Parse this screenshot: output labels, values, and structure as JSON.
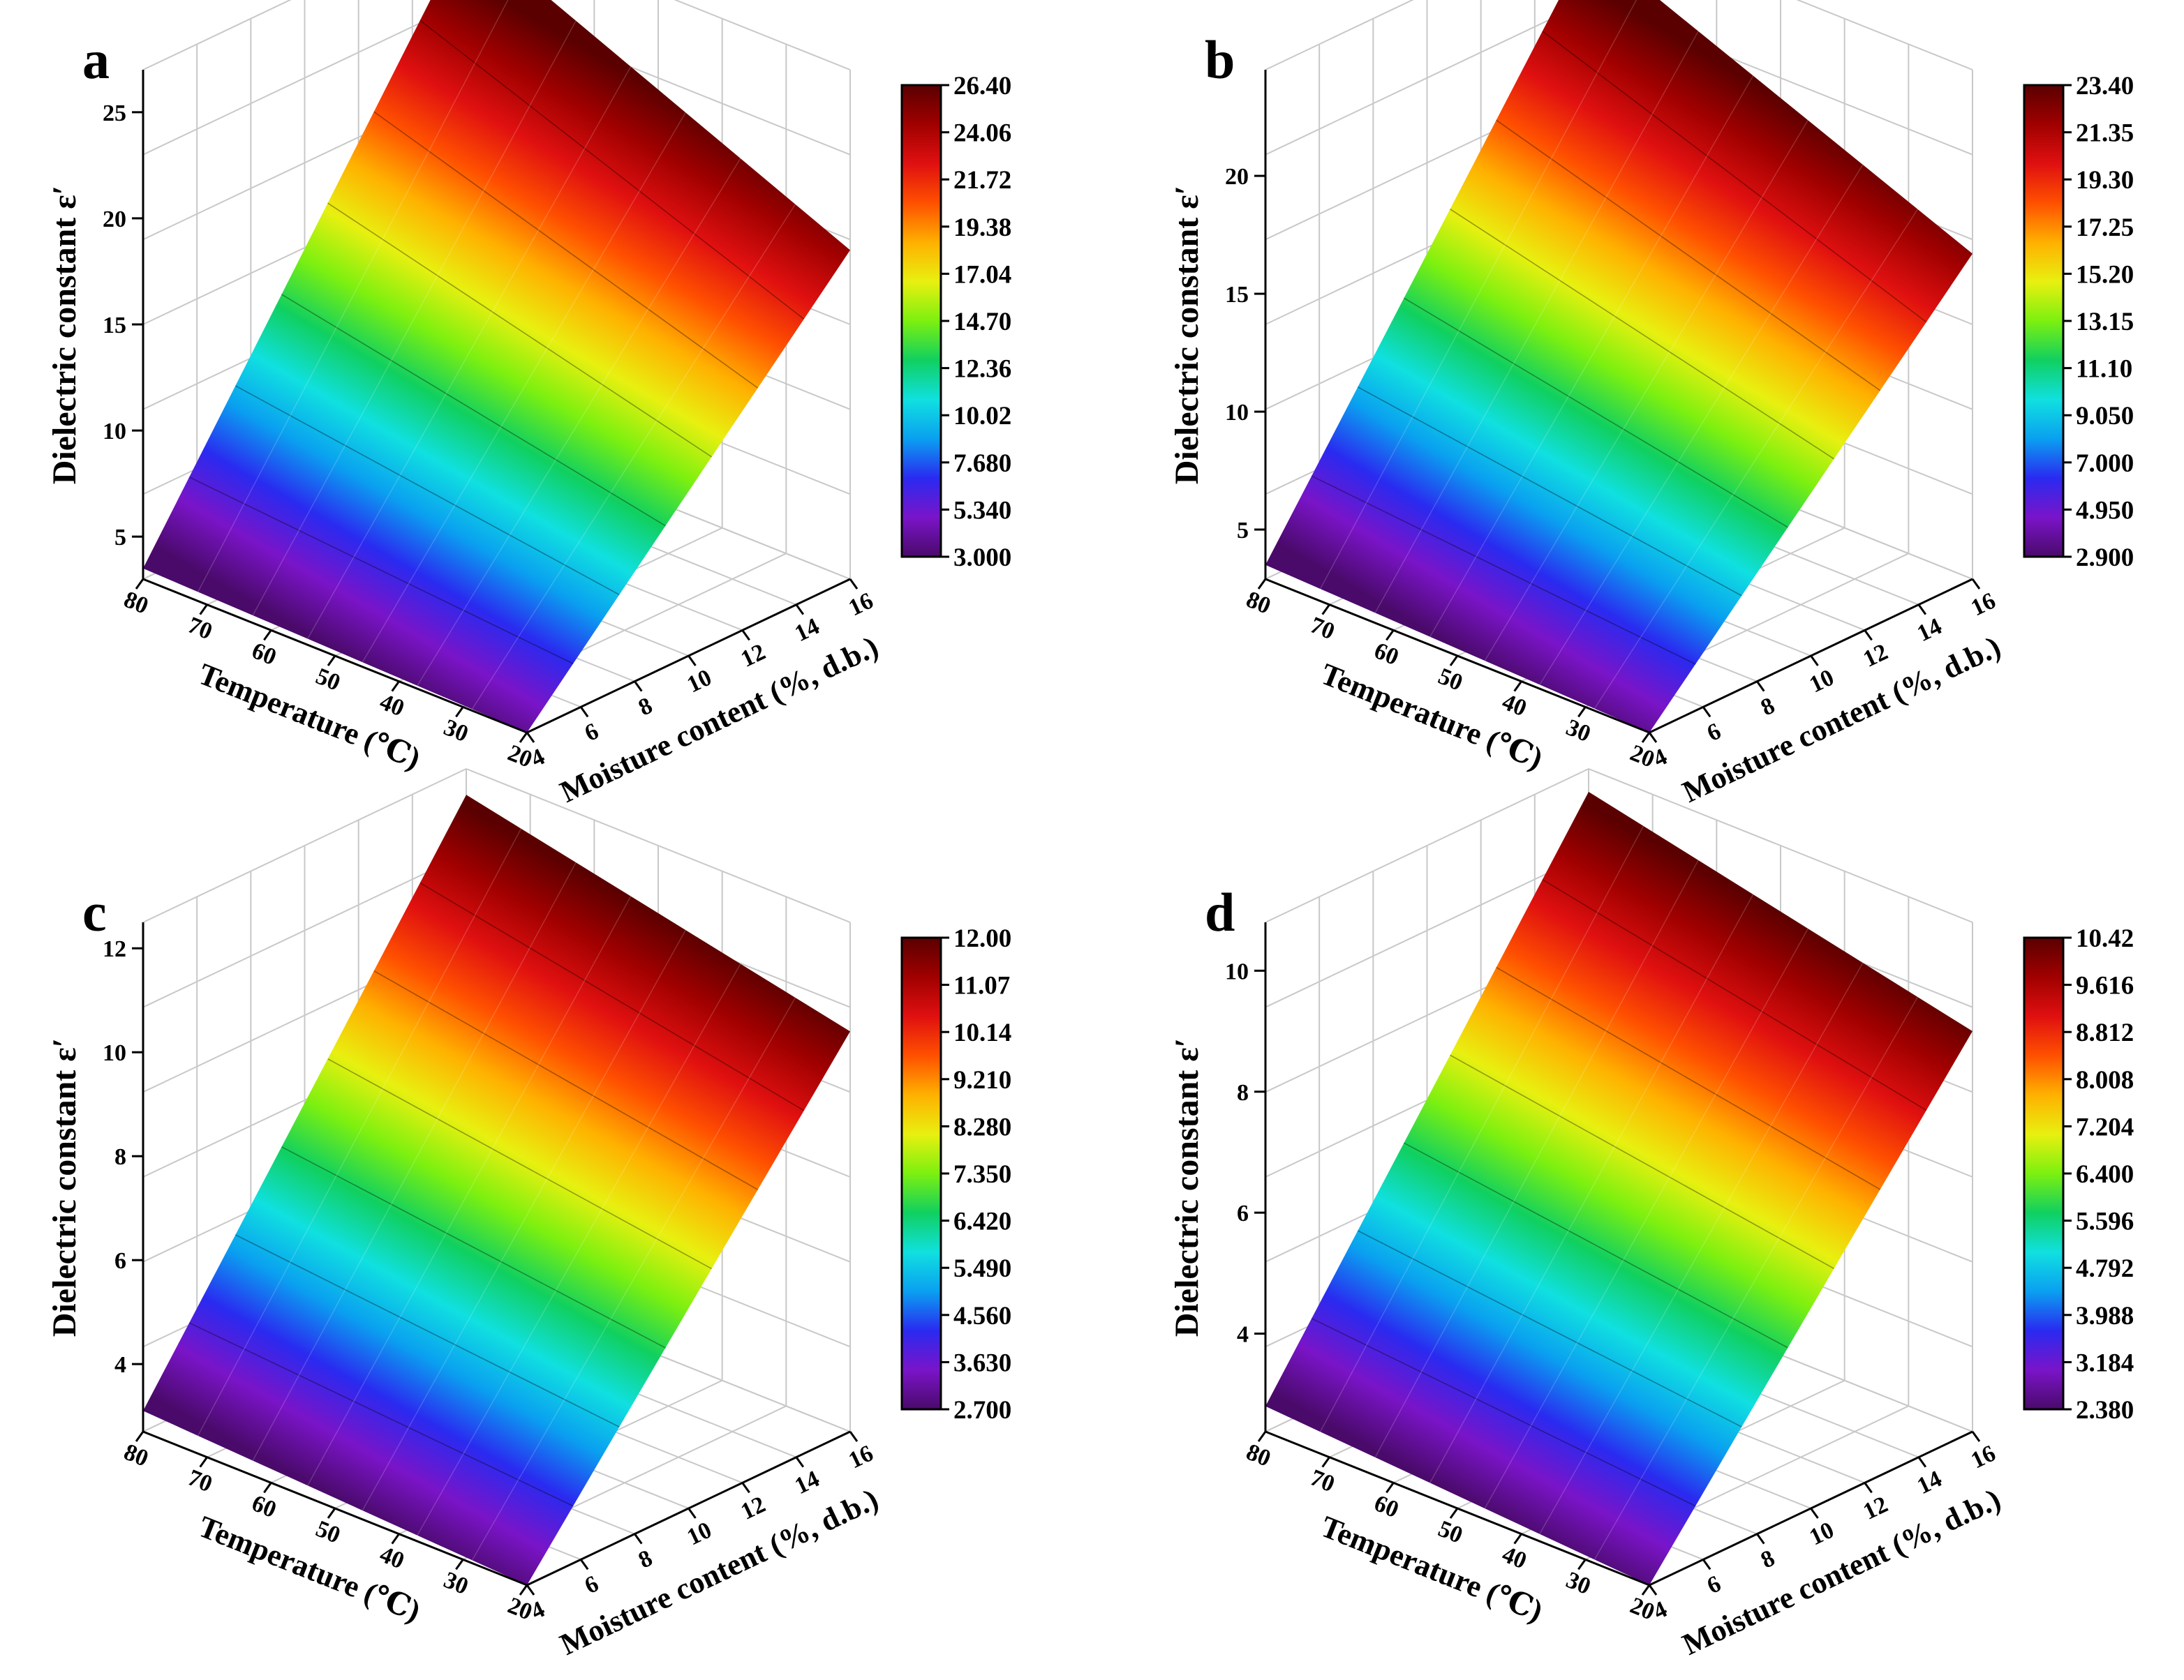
{
  "chart_data": [
    {
      "type": "surface3d",
      "panel_label": "a",
      "zlabel": "Dielectric constant ε′",
      "xlabel": "Temperature (℃)",
      "ylabel": "Moisture content (%, d.b.)",
      "x_ticks": [
        "80",
        "70",
        "60",
        "50",
        "40",
        "30",
        "20"
      ],
      "y_ticks": [
        "4",
        "6",
        "8",
        "10",
        "12",
        "14",
        "16"
      ],
      "z_ticks": [
        "5",
        "10",
        "15",
        "20",
        "25"
      ],
      "zlim": [
        3.0,
        27.0
      ],
      "colorbar_ticks": [
        "26.40",
        "24.06",
        "21.72",
        "19.38",
        "17.04",
        "14.70",
        "12.36",
        "10.02",
        "7.680",
        "5.340",
        "3.000"
      ],
      "surface_corners": {
        "t80_m4": 3.5,
        "t20_m4": 3.0,
        "t80_m16": 26.4,
        "t20_m16": 18.5
      },
      "grid": true
    },
    {
      "type": "surface3d",
      "panel_label": "b",
      "zlabel": "Dielectric constant ε′",
      "xlabel": "Temperature (℃)",
      "ylabel": "Moisture content (%, d.b.)",
      "x_ticks": [
        "80",
        "70",
        "60",
        "50",
        "40",
        "30",
        "20"
      ],
      "y_ticks": [
        "4",
        "6",
        "8",
        "10",
        "12",
        "14",
        "16"
      ],
      "z_ticks": [
        "5",
        "10",
        "15",
        "20"
      ],
      "zlim": [
        2.9,
        24.5
      ],
      "colorbar_ticks": [
        "23.40",
        "21.35",
        "19.30",
        "17.25",
        "15.20",
        "13.15",
        "11.10",
        "9.050",
        "7.000",
        "4.950",
        "2.900"
      ],
      "surface_corners": {
        "t80_m4": 3.5,
        "t20_m4": 2.9,
        "t80_m16": 23.4,
        "t20_m16": 16.7
      },
      "grid": true
    },
    {
      "type": "surface3d",
      "panel_label": "c",
      "zlabel": "Dielectric constant ε′",
      "xlabel": "Temperature (℃)",
      "ylabel": "Moisture content (%, d.b.)",
      "x_ticks": [
        "80",
        "70",
        "60",
        "50",
        "40",
        "30",
        "20"
      ],
      "y_ticks": [
        "4",
        "6",
        "8",
        "10",
        "12",
        "14",
        "16"
      ],
      "z_ticks": [
        "4",
        "6",
        "8",
        "10",
        "12"
      ],
      "zlim": [
        2.7,
        12.5
      ],
      "colorbar_ticks": [
        "12.00",
        "11.07",
        "10.14",
        "9.210",
        "8.280",
        "7.350",
        "6.420",
        "5.490",
        "4.560",
        "3.630",
        "2.700"
      ],
      "surface_corners": {
        "t80_m4": 3.1,
        "t20_m4": 2.7,
        "t80_m16": 12.0,
        "t20_m16": 10.4
      },
      "grid": true
    },
    {
      "type": "surface3d",
      "panel_label": "d",
      "zlabel": "Dielectric constant ε′",
      "xlabel": "Temperature (℃)",
      "ylabel": "Moisture content (%, d.b.)",
      "x_ticks": [
        "80",
        "70",
        "60",
        "50",
        "40",
        "30",
        "20"
      ],
      "y_ticks": [
        "4",
        "6",
        "8",
        "10",
        "12",
        "14",
        "16"
      ],
      "z_ticks": [
        "4",
        "6",
        "8",
        "10"
      ],
      "zlim": [
        2.38,
        10.8
      ],
      "colorbar_ticks": [
        "10.42",
        "9.616",
        "8.812",
        "8.008",
        "7.204",
        "6.400",
        "5.596",
        "4.792",
        "3.988",
        "3.184",
        "2.380"
      ],
      "surface_corners": {
        "t80_m4": 2.8,
        "t20_m4": 2.38,
        "t80_m16": 10.42,
        "t20_m16": 9.0
      },
      "grid": true
    }
  ],
  "colors": {
    "colormap": [
      "#4a0a6a",
      "#7a14c8",
      "#2a2af0",
      "#0aa0f0",
      "#10e0e0",
      "#10d060",
      "#7cf010",
      "#e8f010",
      "#ffb000",
      "#ff5000",
      "#e01010",
      "#a00000",
      "#5a0000"
    ],
    "grid": "#c8c8c8",
    "axis": "#000000"
  }
}
